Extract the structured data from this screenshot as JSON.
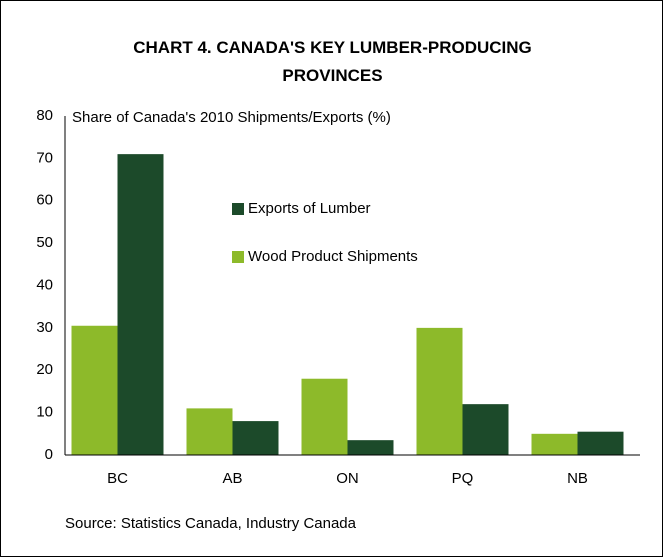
{
  "chart_data": {
    "type": "bar",
    "title": "CHART 4. CANADA'S KEY LUMBER-PRODUCING PROVINCES",
    "y_label": "Share of Canada's 2010 Shipments/Exports (%)",
    "source": "Source: Statistics Canada, Industry Canada",
    "categories": [
      "BC",
      "AB",
      "ON",
      "PQ",
      "NB"
    ],
    "series": [
      {
        "name": "Wood Product Shipments",
        "color": "#8dba2a",
        "values": [
          30.5,
          11,
          18,
          30,
          5
        ]
      },
      {
        "name": "Exports of Lumber",
        "color": "#1c4a2a",
        "values": [
          71,
          8,
          3.5,
          12,
          5.5
        ]
      }
    ],
    "legend_order": [
      1,
      0
    ],
    "ylim": [
      0,
      80
    ],
    "yticks": [
      0,
      10,
      20,
      30,
      40,
      50,
      60,
      70,
      80
    ],
    "grid": false
  }
}
